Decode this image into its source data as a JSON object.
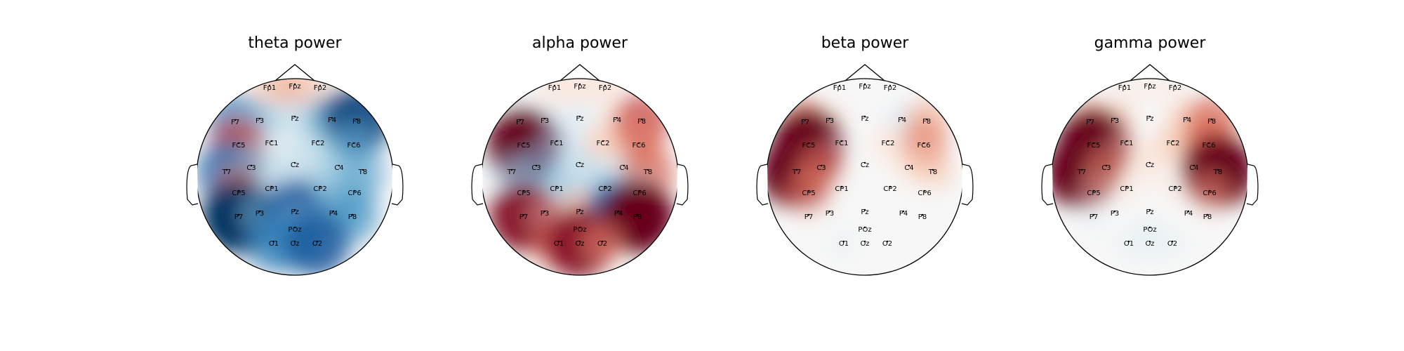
{
  "chart_data": [
    {
      "type": "heatmap",
      "title": "theta power",
      "electrodes": [
        {
          "name": "Fp1",
          "value": 0.2
        },
        {
          "name": "Fpz",
          "value": 0.3
        },
        {
          "name": "Fp2",
          "value": 0.1
        },
        {
          "name": "F7",
          "value": -0.6
        },
        {
          "name": "F3",
          "value": -0.3
        },
        {
          "name": "Fz",
          "value": -0.2
        },
        {
          "name": "F4",
          "value": -0.5
        },
        {
          "name": "F8",
          "value": -0.9
        },
        {
          "name": "FC5",
          "value": 0.6
        },
        {
          "name": "FC1",
          "value": -0.1
        },
        {
          "name": "FC2",
          "value": -0.2
        },
        {
          "name": "FC6",
          "value": -0.4
        },
        {
          "name": "T7",
          "value": -0.7
        },
        {
          "name": "C3",
          "value": -0.3
        },
        {
          "name": "Cz",
          "value": -0.2
        },
        {
          "name": "C4",
          "value": -0.3
        },
        {
          "name": "T8",
          "value": -0.4
        },
        {
          "name": "CP5",
          "value": 0.5
        },
        {
          "name": "CP1",
          "value": -0.2
        },
        {
          "name": "CP2",
          "value": -0.3
        },
        {
          "name": "CP6",
          "value": -0.4
        },
        {
          "name": "P7",
          "value": -1.0
        },
        {
          "name": "P3",
          "value": -0.3
        },
        {
          "name": "Pz",
          "value": -0.8
        },
        {
          "name": "P4",
          "value": -0.4
        },
        {
          "name": "P8",
          "value": -0.5
        },
        {
          "name": "POz",
          "value": -0.3
        },
        {
          "name": "O1",
          "value": -0.6
        },
        {
          "name": "Oz",
          "value": -0.6
        },
        {
          "name": "O2",
          "value": -0.8
        }
      ]
    },
    {
      "type": "heatmap",
      "title": "alpha power",
      "electrodes": [
        {
          "name": "Fp1",
          "value": 0.1
        },
        {
          "name": "Fpz",
          "value": 0.1
        },
        {
          "name": "Fp2",
          "value": 0.1
        },
        {
          "name": "F7",
          "value": -0.1
        },
        {
          "name": "F3",
          "value": -0.1
        },
        {
          "name": "Fz",
          "value": -0.1
        },
        {
          "name": "F4",
          "value": 0.1
        },
        {
          "name": "F8",
          "value": 0.6
        },
        {
          "name": "FC5",
          "value": 1.0
        },
        {
          "name": "FC1",
          "value": -0.2
        },
        {
          "name": "FC2",
          "value": 0.2
        },
        {
          "name": "FC6",
          "value": 0.4
        },
        {
          "name": "T7",
          "value": -0.2
        },
        {
          "name": "C3",
          "value": -0.3
        },
        {
          "name": "Cz",
          "value": -0.2
        },
        {
          "name": "C4",
          "value": -0.1
        },
        {
          "name": "T8",
          "value": 0.5
        },
        {
          "name": "CP5",
          "value": -0.3
        },
        {
          "name": "CP1",
          "value": -0.3
        },
        {
          "name": "CP2",
          "value": -0.3
        },
        {
          "name": "CP6",
          "value": -0.2
        },
        {
          "name": "P7",
          "value": 0.9
        },
        {
          "name": "P3",
          "value": 0.1
        },
        {
          "name": "Pz",
          "value": 0.3
        },
        {
          "name": "P4",
          "value": -0.8
        },
        {
          "name": "P8",
          "value": 1.0
        },
        {
          "name": "POz",
          "value": 0.3
        },
        {
          "name": "O1",
          "value": 0.5
        },
        {
          "name": "Oz",
          "value": 0.9
        },
        {
          "name": "O2",
          "value": 0.3
        }
      ]
    },
    {
      "type": "heatmap",
      "title": "beta power",
      "electrodes": [
        {
          "name": "Fp1",
          "value": 0.0
        },
        {
          "name": "Fpz",
          "value": 0.0
        },
        {
          "name": "Fp2",
          "value": 0.0
        },
        {
          "name": "F7",
          "value": 0.4
        },
        {
          "name": "F3",
          "value": 0.1
        },
        {
          "name": "Fz",
          "value": 0.0
        },
        {
          "name": "F4",
          "value": -0.1
        },
        {
          "name": "F8",
          "value": 0.3
        },
        {
          "name": "FC5",
          "value": 1.0
        },
        {
          "name": "FC1",
          "value": 0.0
        },
        {
          "name": "FC2",
          "value": 0.1
        },
        {
          "name": "FC6",
          "value": 0.4
        },
        {
          "name": "T7",
          "value": 1.0
        },
        {
          "name": "C3",
          "value": 0.4
        },
        {
          "name": "Cz",
          "value": 0.0
        },
        {
          "name": "C4",
          "value": 0.1
        },
        {
          "name": "T8",
          "value": 0.2
        },
        {
          "name": "CP5",
          "value": 0.4
        },
        {
          "name": "CP1",
          "value": 0.0
        },
        {
          "name": "CP2",
          "value": 0.0
        },
        {
          "name": "CP6",
          "value": 0.0
        },
        {
          "name": "P7",
          "value": 0.0
        },
        {
          "name": "P3",
          "value": 0.0
        },
        {
          "name": "Pz",
          "value": 0.0
        },
        {
          "name": "P4",
          "value": 0.0
        },
        {
          "name": "P8",
          "value": 0.0
        },
        {
          "name": "POz",
          "value": 0.0
        },
        {
          "name": "O1",
          "value": -0.05
        },
        {
          "name": "Oz",
          "value": 0.0
        },
        {
          "name": "O2",
          "value": 0.0
        }
      ]
    },
    {
      "type": "heatmap",
      "title": "gamma power",
      "electrodes": [
        {
          "name": "Fp1",
          "value": 0.05
        },
        {
          "name": "Fpz",
          "value": 0.05
        },
        {
          "name": "Fp2",
          "value": 0.05
        },
        {
          "name": "F7",
          "value": 0.3
        },
        {
          "name": "F3",
          "value": 0.2
        },
        {
          "name": "Fz",
          "value": 0.0
        },
        {
          "name": "F4",
          "value": 0.2
        },
        {
          "name": "F8",
          "value": 0.5
        },
        {
          "name": "FC5",
          "value": 1.0
        },
        {
          "name": "FC1",
          "value": 0.1
        },
        {
          "name": "FC2",
          "value": 0.2
        },
        {
          "name": "FC6",
          "value": 0.5
        },
        {
          "name": "T7",
          "value": 1.0
        },
        {
          "name": "C3",
          "value": 0.3
        },
        {
          "name": "Cz",
          "value": 0.1
        },
        {
          "name": "C4",
          "value": 0.1
        },
        {
          "name": "T8",
          "value": 1.0
        },
        {
          "name": "CP5",
          "value": 0.1
        },
        {
          "name": "CP1",
          "value": 0.05
        },
        {
          "name": "CP2",
          "value": 0.05
        },
        {
          "name": "CP6",
          "value": 0.3
        },
        {
          "name": "P7",
          "value": -0.05
        },
        {
          "name": "P3",
          "value": 0.0
        },
        {
          "name": "Pz",
          "value": 0.0
        },
        {
          "name": "P4",
          "value": 0.0
        },
        {
          "name": "P8",
          "value": 0.0
        },
        {
          "name": "POz",
          "value": -0.05
        },
        {
          "name": "O1",
          "value": -0.05
        },
        {
          "name": "Oz",
          "value": -0.05
        },
        {
          "name": "O2",
          "value": -0.05
        }
      ]
    }
  ]
}
